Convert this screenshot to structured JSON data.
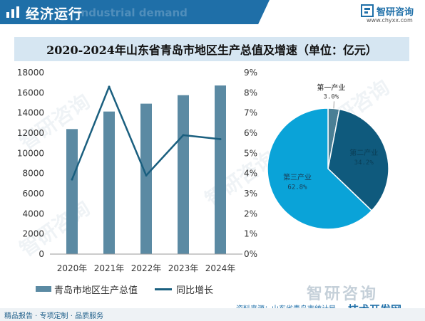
{
  "header": {
    "title": "经济运行",
    "ghost": "Industrial demand",
    "logo_name": "智研咨询",
    "logo_url": "www.chyxx.com",
    "accent": "#1f6fa8"
  },
  "watermark": "智研咨询",
  "legend": {
    "bar_label": "青岛市地区生产总值",
    "line_label": "同比增长"
  },
  "source": "资料来源：山东省青岛市统计局",
  "brand_stamp": "技术开发网",
  "footer": "精品报告 · 专项定制 · 品质服务",
  "chart_data": [
    {
      "type": "bar",
      "title": "2020-2024年山东省青岛市地区生产总值及增速（单位：亿元）",
      "categories": [
        "2020年",
        "2021年",
        "2022年",
        "2023年",
        "2024年"
      ],
      "series": [
        {
          "name": "青岛市地区生产总值",
          "type": "bar",
          "values": [
            12400,
            14140,
            14920,
            15760,
            16720
          ],
          "color": "#5b8aa3"
        },
        {
          "name": "同比增长",
          "type": "line",
          "axis": "right",
          "values": [
            3.7,
            8.3,
            3.9,
            5.9,
            5.7
          ],
          "color": "#1a5f7f"
        }
      ],
      "y_left": {
        "ylim": [
          0,
          18000
        ],
        "ticks": [
          "0",
          "2000",
          "4000",
          "6000",
          "8000",
          "10000",
          "12000",
          "14000",
          "16000",
          "18000"
        ]
      },
      "y_right": {
        "ylim": [
          0,
          9
        ],
        "ticks": [
          "0%",
          "1%",
          "2%",
          "3%",
          "4%",
          "5%",
          "6%",
          "7%",
          "8%",
          "9%"
        ]
      },
      "grid": false,
      "legend_position": "bottom"
    },
    {
      "type": "pie",
      "slices": [
        {
          "label": "第一产业",
          "value": 3.0,
          "display": "3.0%",
          "color": "#4a7f95"
        },
        {
          "label": "第二产业",
          "value": 34.2,
          "display": "34.2%",
          "color": "#0f5a7d"
        },
        {
          "label": "第三产业",
          "value": 62.8,
          "display": "62.8%",
          "color": "#0aa3d8"
        }
      ]
    }
  ]
}
